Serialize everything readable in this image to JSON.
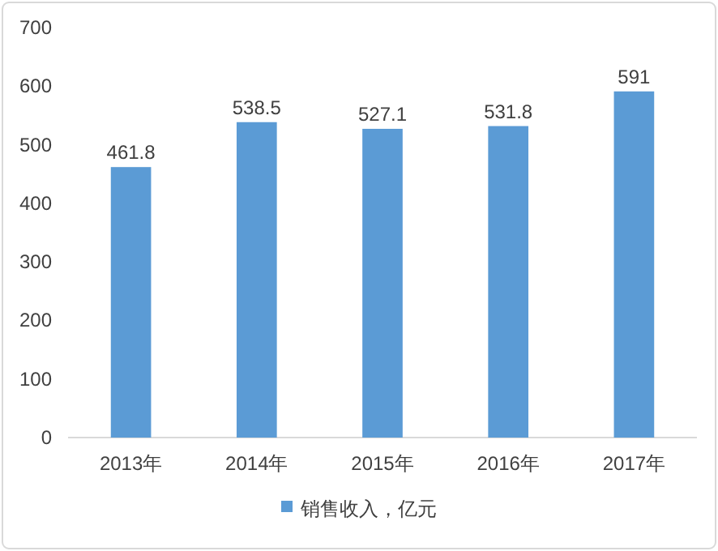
{
  "chart_data": {
    "type": "bar",
    "categories": [
      "2013年",
      "2014年",
      "2015年",
      "2016年",
      "2017年"
    ],
    "series": [
      {
        "name": "销售收入，亿元",
        "color": "#5b9bd5",
        "values": [
          461.8,
          538.5,
          527.1,
          531.8,
          591
        ]
      }
    ],
    "ylim": [
      0,
      700
    ],
    "yticks": [
      0,
      100,
      200,
      300,
      400,
      500,
      600,
      700
    ],
    "grid": false,
    "legend": "bottom",
    "data_labels": true
  }
}
